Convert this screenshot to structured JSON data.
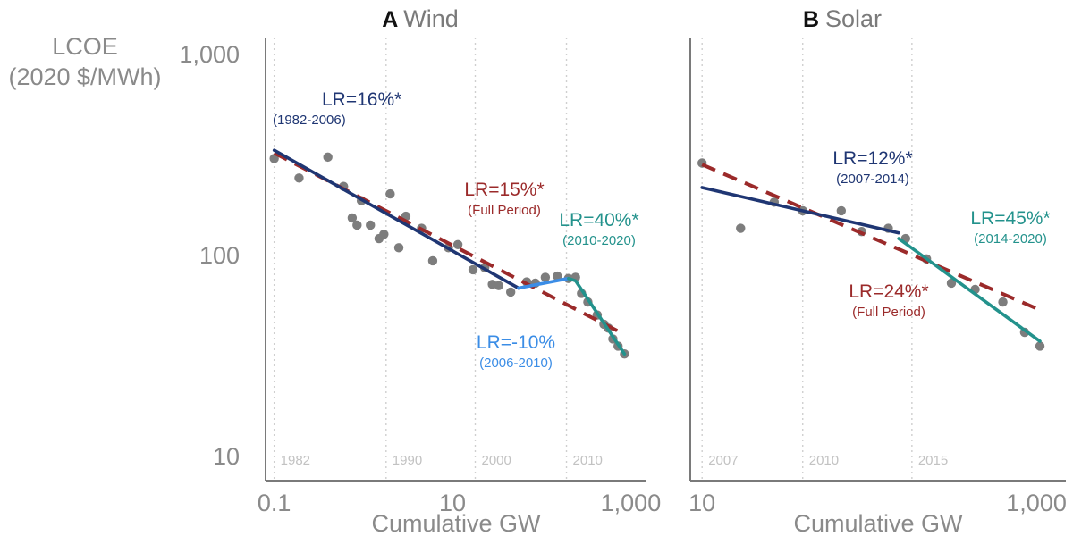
{
  "figure": {
    "ylabel_line1": "LCOE",
    "ylabel_line2": "(2020 $/MWh)",
    "colors": {
      "points": "#7d7d7d",
      "full_period": "#9b2a2a",
      "navy": "#1f3673",
      "blue": "#3b8de6",
      "teal": "#23928c",
      "axis": "#7a7a7a"
    }
  },
  "chart_data": [
    {
      "type": "scatter",
      "panel_letter": "A",
      "title": "Wind",
      "xlabel": "Cumulative GW",
      "x_scale": "log",
      "y_scale": "log",
      "xlim": [
        0.08,
        1500
      ],
      "ylim": [
        7.5,
        1200
      ],
      "x_ticks": [
        {
          "value": 0.1,
          "label": "0.1"
        },
        {
          "value": 10,
          "label": "10"
        },
        {
          "value": 1000,
          "label": "1,000"
        }
      ],
      "y_ticks": [
        {
          "value": 10,
          "label": "10"
        },
        {
          "value": 100,
          "label": "100"
        },
        {
          "value": 1000,
          "label": "1,000"
        }
      ],
      "year_lines": [
        {
          "x": 0.1,
          "label": "1982"
        },
        {
          "x": 1.8,
          "label": "1990"
        },
        {
          "x": 18,
          "label": "2000"
        },
        {
          "x": 190,
          "label": "2010"
        }
      ],
      "points": [
        [
          0.1,
          300
        ],
        [
          0.19,
          240
        ],
        [
          0.4,
          305
        ],
        [
          0.6,
          218
        ],
        [
          0.75,
          152
        ],
        [
          0.85,
          140
        ],
        [
          0.95,
          185
        ],
        [
          1.2,
          140
        ],
        [
          1.5,
          120
        ],
        [
          1.7,
          126
        ],
        [
          2.0,
          200
        ],
        [
          2.5,
          108
        ],
        [
          3.0,
          155
        ],
        [
          4.5,
          135
        ],
        [
          6.0,
          93
        ],
        [
          9.0,
          108
        ],
        [
          11.5,
          112
        ],
        [
          17.0,
          84
        ],
        [
          23.0,
          86
        ],
        [
          28.0,
          71
        ],
        [
          33.0,
          70
        ],
        [
          45.0,
          65
        ],
        [
          68.0,
          73
        ],
        [
          85.0,
          72
        ],
        [
          110.0,
          77
        ],
        [
          150.0,
          78
        ],
        [
          200.0,
          76
        ],
        [
          240.0,
          77
        ],
        [
          280.0,
          64
        ],
        [
          330.0,
          58
        ],
        [
          420.0,
          50
        ],
        [
          500.0,
          45
        ],
        [
          560.0,
          43
        ],
        [
          630.0,
          38
        ],
        [
          720.0,
          35
        ],
        [
          850.0,
          32
        ]
      ],
      "fits": [
        {
          "label": "LR=16%*",
          "sub": "(1982-2006)",
          "color": "#1f3673",
          "dashed": false,
          "x": [
            0.1,
            55
          ],
          "y": [
            330,
            68
          ]
        },
        {
          "label": "LR=-10%",
          "sub": "(2006-2010)",
          "color": "#3b8de6",
          "dashed": false,
          "x": [
            55,
            200
          ],
          "y": [
            68,
            76
          ]
        },
        {
          "label": "LR=40%*",
          "sub": "(2010-2020)",
          "color": "#23928c",
          "dashed": false,
          "x": [
            200,
            240,
            850
          ],
          "y": [
            76,
            74,
            32
          ]
        },
        {
          "label": "LR=15%*",
          "sub": "(Full Period)",
          "color": "#9b2a2a",
          "dashed": true,
          "x": [
            0.1,
            850
          ],
          "y": [
            320,
            40
          ]
        }
      ]
    },
    {
      "type": "scatter",
      "panel_letter": "B",
      "title": "Solar",
      "xlabel": "Cumulative GW",
      "x_scale": "log",
      "y_scale": "log",
      "xlim": [
        8.5,
        1500
      ],
      "ylim": [
        7.5,
        1200
      ],
      "x_ticks": [
        {
          "value": 10,
          "label": "10"
        },
        {
          "value": 1000,
          "label": "1,000"
        }
      ],
      "year_lines": [
        {
          "x": 10,
          "label": "2007"
        },
        {
          "x": 40,
          "label": "2010"
        },
        {
          "x": 180,
          "label": "2015"
        }
      ],
      "points": [
        [
          10,
          285
        ],
        [
          17,
          135
        ],
        [
          27,
          182
        ],
        [
          40,
          165
        ],
        [
          68,
          165
        ],
        [
          90,
          130
        ],
        [
          130,
          135
        ],
        [
          165,
          120
        ],
        [
          220,
          95
        ],
        [
          310,
          72
        ],
        [
          430,
          67
        ],
        [
          630,
          58
        ],
        [
          850,
          41
        ],
        [
          1050,
          35
        ]
      ],
      "fits": [
        {
          "label": "LR=12%*",
          "sub": "(2007-2014)",
          "color": "#1f3673",
          "dashed": false,
          "x": [
            10,
            150
          ],
          "y": [
            215,
            128
          ]
        },
        {
          "label": "LR=45%*",
          "sub": "(2014-2020)",
          "color": "#23928c",
          "dashed": false,
          "x": [
            150,
            1050
          ],
          "y": [
            120,
            37
          ]
        },
        {
          "label": "LR=24%*",
          "sub": "(Full Period)",
          "color": "#9b2a2a",
          "dashed": true,
          "x": [
            10,
            1050
          ],
          "y": [
            280,
            53
          ]
        }
      ]
    }
  ]
}
